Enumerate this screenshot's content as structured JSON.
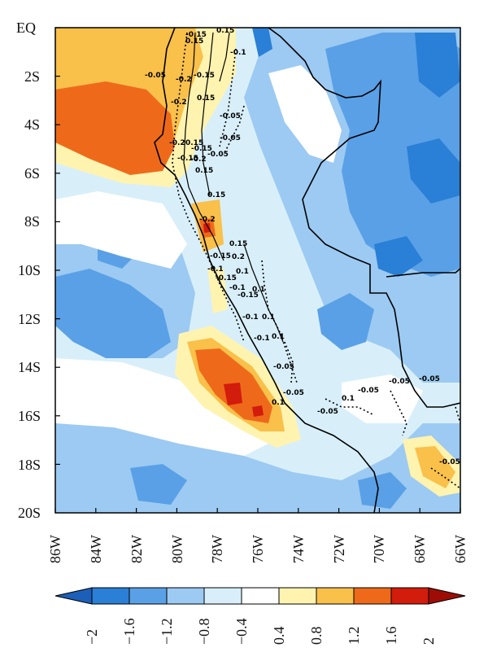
{
  "map": {
    "lat_labels": [
      "EQ",
      "2S",
      "4S",
      "6S",
      "8S",
      "10S",
      "12S",
      "14S",
      "16S",
      "18S",
      "20S"
    ],
    "lon_labels": [
      "86W",
      "84W",
      "82W",
      "80W",
      "78W",
      "76W",
      "74W",
      "72W",
      "70W",
      "68W",
      "66W"
    ],
    "fill_colors": {
      "neg_strong": "#2a7fd6",
      "neg_mid": "#5aa0e6",
      "neg_light": "#9ccaf2",
      "neg_faint": "#d8effa",
      "neutral": "#ffffff",
      "pos_faint": "#fff3b0",
      "pos_light": "#f9c04a",
      "pos_mid": "#ee6a1a",
      "pos_strong": "#d21c0c"
    },
    "contour_labels": [
      "-0.15",
      "0.15",
      "0.15",
      "-0.1",
      "-0.05",
      "-0.2",
      "-0.15",
      "0.15",
      "-0.2",
      "-0.05",
      "0.15",
      "-0.05",
      "-0.2",
      "-0.15",
      "-0.05",
      "-0.15",
      "-0.2",
      "0.15",
      "0.15",
      "-0.2",
      "0.15",
      "0.2",
      "-0.15",
      "-0.1",
      "0.1",
      "-0.15",
      "-0.1",
      "0.1",
      "-0.15",
      "0.1",
      "-0.1",
      "0.1",
      "-0.1",
      "-0.05",
      "0.1",
      "-0.05",
      "0.1",
      "-0.05",
      "-0.05",
      "-0.05",
      "-0.05",
      "-0.05"
    ],
    "outline": "coastline and country borders"
  },
  "colorbar": {
    "labels": [
      "−2",
      "−1.6",
      "−1.2",
      "−0.8",
      "−0.4",
      "0.4",
      "0.8",
      "1.2",
      "1.6",
      "2"
    ],
    "colors": [
      "#2a7fd6",
      "#5aa0e6",
      "#9ccaf2",
      "#d8effa",
      "#ffffff",
      "#fff3b0",
      "#f9c04a",
      "#ee6a1a",
      "#d21c0c"
    ],
    "under_color": "#1c5fb8",
    "over_color": "#9e0d05"
  }
}
